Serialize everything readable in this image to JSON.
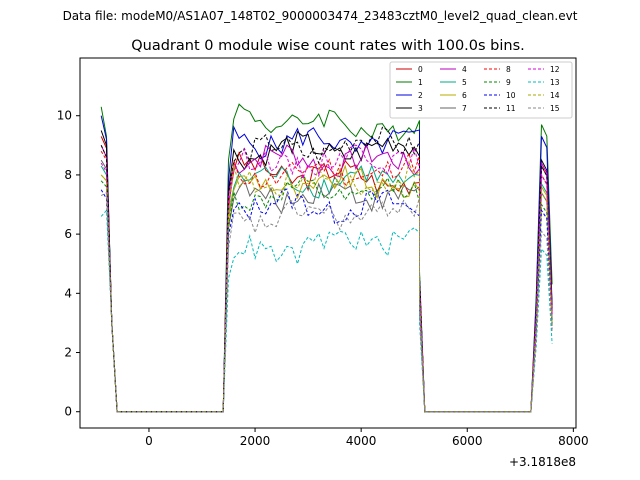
{
  "suptitle": "Data file: modeM0/AS1A07_148T02_9000003474_23483cztM0_level2_quad_clean.evt",
  "chart_data": {
    "type": "line",
    "title": "Quadrant 0 module wise count rates with 100.0s bins.",
    "xlabel": "",
    "ylabel": "",
    "x_offset_label": "+3.1818e8",
    "xlim": [
      -1300,
      8050
    ],
    "ylim": [
      -0.55,
      11.95
    ],
    "xticks": [
      0,
      2000,
      4000,
      6000,
      8000
    ],
    "xtick_labels": [
      "0",
      "2000",
      "4000",
      "6000",
      "8000"
    ],
    "yticks": [
      0,
      2,
      4,
      6,
      8,
      10
    ],
    "ytick_labels": [
      "0",
      "2",
      "4",
      "6",
      "8",
      "10"
    ],
    "grid": false,
    "legend_position": "top-right",
    "legend_columns": 4,
    "segments": {
      "seg1": {
        "x": [
          -900,
          -800,
          -700,
          -600
        ]
      },
      "seg2": {
        "x_start": 1400,
        "x_end": 5100,
        "step": 100
      },
      "seg3": {
        "x": [
          5100,
          5200
        ]
      },
      "seg4": {
        "x": [
          7250,
          7350,
          7450,
          7550,
          7600
        ]
      }
    },
    "series": [
      {
        "name": "0",
        "color": "#cc0000",
        "dash": "solid",
        "start": [
          9.3,
          8.9,
          3.0,
          0.0
        ],
        "level": 8.2,
        "end": 7.8,
        "peak": 8.3,
        "last": 3.4
      },
      {
        "name": "1",
        "color": "#007700",
        "dash": "solid",
        "start": [
          10.3,
          9.3,
          3.0,
          0.0
        ],
        "level": 10.0,
        "end": 9.5,
        "peak": 9.7,
        "last": 4.3
      },
      {
        "name": "2",
        "color": "#0000dd",
        "dash": "solid",
        "start": [
          10.0,
          9.2,
          3.0,
          0.0
        ],
        "level": 9.2,
        "end": 9.0,
        "peak": 9.3,
        "last": 3.6
      },
      {
        "name": "3",
        "color": "#000000",
        "dash": "solid",
        "start": [
          9.5,
          9.0,
          3.0,
          0.0
        ],
        "level": 8.8,
        "end": 8.9,
        "peak": 8.5,
        "last": 3.5
      },
      {
        "name": "4",
        "color": "#bb00bb",
        "dash": "solid",
        "start": [
          9.0,
          8.6,
          3.0,
          0.0
        ],
        "level": 8.6,
        "end": 8.4,
        "peak": 8.4,
        "last": 3.3
      },
      {
        "name": "5",
        "color": "#00aa88",
        "dash": "solid",
        "start": [
          8.3,
          8.0,
          3.0,
          0.0
        ],
        "level": 7.8,
        "end": 7.9,
        "peak": 7.7,
        "last": 3.0
      },
      {
        "name": "6",
        "color": "#bbaa00",
        "dash": "solid",
        "start": [
          8.0,
          7.8,
          3.0,
          0.0
        ],
        "level": 7.6,
        "end": 7.7,
        "peak": 7.6,
        "last": 2.9
      },
      {
        "name": "7",
        "color": "#666666",
        "dash": "solid",
        "start": [
          8.5,
          8.2,
          3.0,
          0.0
        ],
        "level": 7.3,
        "end": 7.4,
        "peak": 7.4,
        "last": 3.1
      },
      {
        "name": "8",
        "color": "#ff0000",
        "dash": "dashed",
        "start": [
          8.8,
          8.5,
          3.0,
          0.0
        ],
        "level": 8.0,
        "end": 8.2,
        "peak": 8.0,
        "last": 3.3
      },
      {
        "name": "9",
        "color": "#008800",
        "dash": "dashed",
        "start": [
          7.8,
          7.6,
          3.0,
          0.0
        ],
        "level": 7.3,
        "end": 7.4,
        "peak": 7.0,
        "last": 3.0
      },
      {
        "name": "10",
        "color": "#0000ff",
        "dash": "dashed",
        "start": [
          7.5,
          7.2,
          3.0,
          0.0
        ],
        "level": 7.0,
        "end": 6.9,
        "peak": 6.8,
        "last": 2.8
      },
      {
        "name": "11",
        "color": "#000000",
        "dash": "dashed",
        "start": [
          9.0,
          8.6,
          3.0,
          0.0
        ],
        "level": 8.7,
        "end": 9.2,
        "peak": 8.3,
        "last": 3.4
      },
      {
        "name": "12",
        "color": "#dd00dd",
        "dash": "dashed",
        "start": [
          8.4,
          8.1,
          3.0,
          0.0
        ],
        "level": 8.3,
        "end": 8.7,
        "peak": 8.0,
        "last": 3.2
      },
      {
        "name": "13",
        "color": "#00bbbb",
        "dash": "dashed",
        "start": [
          6.6,
          6.8,
          3.0,
          0.0
        ],
        "level": 5.3,
        "end": 6.0,
        "peak": 5.5,
        "last": 2.3
      },
      {
        "name": "14",
        "color": "#aaaa00",
        "dash": "dashed",
        "start": [
          8.0,
          7.8,
          3.0,
          0.0
        ],
        "level": 7.8,
        "end": 7.8,
        "peak": 7.4,
        "last": 2.9
      },
      {
        "name": "15",
        "color": "#888888",
        "dash": "dashed",
        "start": [
          7.3,
          7.4,
          3.0,
          0.0
        ],
        "level": 6.5,
        "end": 6.8,
        "peak": 6.1,
        "last": 2.7
      }
    ]
  }
}
